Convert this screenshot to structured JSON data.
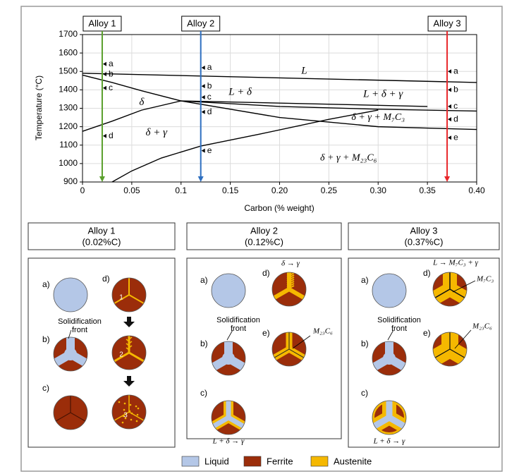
{
  "chart_data": {
    "type": "line",
    "xlabel": "Carbon (% weight)",
    "ylabel": "Temperature (°C)",
    "xlim": [
      0,
      0.4
    ],
    "ylim": [
      900,
      1700
    ],
    "xticks": [
      0,
      0.05,
      0.1,
      0.15,
      {
        "value": 0.2,
        "label": "0.20"
      },
      0.25,
      {
        "value": 0.3,
        "label": "0.30"
      },
      0.35,
      {
        "value": 0.4,
        "label": "0.40"
      }
    ],
    "yticks": [
      900,
      1000,
      1100,
      1200,
      1300,
      1400,
      1500,
      1600,
      1700
    ],
    "grid": true,
    "series": [
      {
        "color": "#000000",
        "x": [
          0,
          0.4
        ],
        "values": [
          1490,
          1440
        ]
      },
      {
        "color": "#000000",
        "x": [
          0,
          0.03,
          0.06,
          0.1
        ],
        "values": [
          1480,
          1440,
          1395,
          1340
        ]
      },
      {
        "color": "#000000",
        "x": [
          0,
          0.03,
          0.06,
          0.1
        ],
        "values": [
          1175,
          1230,
          1290,
          1340
        ]
      },
      {
        "color": "#000000",
        "x": [
          0.1,
          0.35
        ],
        "values": [
          1340,
          1310
        ]
      },
      {
        "color": "#000000",
        "x": [
          0.1,
          0.2,
          0.3,
          0.4
        ],
        "values": [
          1340,
          1310,
          1295,
          1285
        ]
      },
      {
        "color": "#000000",
        "x": [
          0.1,
          0.2,
          0.3,
          0.4
        ],
        "values": [
          1340,
          1250,
          1200,
          1185
        ]
      },
      {
        "color": "#000000",
        "x": [
          0.03,
          0.05,
          0.08,
          0.12,
          0.18,
          0.25,
          0.3
        ],
        "values": [
          900,
          960,
          1030,
          1095,
          1160,
          1240,
          1290
        ]
      }
    ],
    "alloys": [
      {
        "name": "Alloy 1",
        "x": 0.02,
        "color": "#5aa02c",
        "points": [
          {
            "label": "a",
            "y": 1540
          },
          {
            "label": "b",
            "y": 1485
          },
          {
            "label": "c",
            "y": 1410
          },
          {
            "label": "d",
            "y": 1150
          }
        ]
      },
      {
        "name": "Alloy 2",
        "x": 0.12,
        "color": "#2e6fc0",
        "points": [
          {
            "label": "a",
            "y": 1520
          },
          {
            "label": "b",
            "y": 1420
          },
          {
            "label": "c",
            "y": 1360
          },
          {
            "label": "d",
            "y": 1280
          },
          {
            "label": "e",
            "y": 1070
          }
        ]
      },
      {
        "name": "Alloy 3",
        "x": 0.37,
        "color": "#e8262a",
        "points": [
          {
            "label": "a",
            "y": 1500
          },
          {
            "label": "b",
            "y": 1400
          },
          {
            "label": "c",
            "y": 1310
          },
          {
            "label": "d",
            "y": 1240
          },
          {
            "label": "e",
            "y": 1140
          }
        ]
      }
    ],
    "annotations": [
      "L",
      "L + δ",
      "δ",
      "δ + γ",
      "L + δ + γ",
      "δ + γ + M₇C₃",
      "δ + γ + M₂₃C₆"
    ]
  },
  "panels": [
    {
      "title": "Alloy 1",
      "composition": "(0.02%C)",
      "steps": [
        "a)",
        "d)",
        "b)",
        "c)"
      ],
      "notes": [
        "Solidification front",
        "1",
        "2",
        "3"
      ]
    },
    {
      "title": "Alloy 2",
      "composition": "(0.12%C)",
      "steps": [
        "a)",
        "d)",
        "b)",
        "e)",
        "c)"
      ],
      "notes": [
        "Solidification front",
        "δ → γ",
        "M₂₃C₆",
        "L + δ → γ"
      ]
    },
    {
      "title": "Alloy 3",
      "composition": "(0.37%C)",
      "steps": [
        "a)",
        "d)",
        "b)",
        "e)",
        "c)"
      ],
      "notes": [
        "L → M₇C₃ + γ",
        "M₇C₃",
        "Solidification front",
        "M₂₃C₆",
        "L + δ → γ"
      ]
    }
  ],
  "legend": [
    {
      "label": "Liquid",
      "color": "#b4c7e7"
    },
    {
      "label": "Ferrite",
      "color": "#9b2d0a"
    },
    {
      "label": "Austenite",
      "color": "#f5b800"
    }
  ]
}
